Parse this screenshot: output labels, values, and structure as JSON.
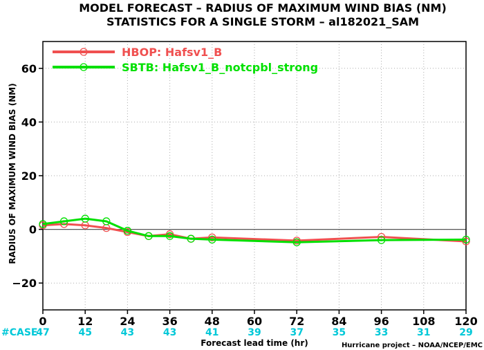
{
  "chart_data": {
    "type": "line",
    "title": "MODEL FORECAST – RADIUS OF MAXIMUM WIND BIAS (NM)",
    "subtitle": "STATISTICS FOR A SINGLE STORM – al182021_SAM",
    "xlabel": "Forecast lead time (hr)",
    "ylabel": "RADIUS OF MAXIMUM WIND BIAS (NM)",
    "xlim": [
      0,
      120
    ],
    "ylim": [
      -30,
      70
    ],
    "x_ticks": [
      0,
      12,
      24,
      36,
      48,
      60,
      72,
      84,
      96,
      108,
      120
    ],
    "y_ticks": [
      -20,
      0,
      20,
      40,
      60
    ],
    "grid": true,
    "legend_position": "top-left",
    "series": [
      {
        "name": "HBOP: Hafsv1_B",
        "color": "#f05050",
        "x": [
          0,
          6,
          12,
          18,
          24,
          30,
          36,
          42,
          48,
          72,
          96,
          120
        ],
        "y": [
          1.5,
          2.0,
          1.5,
          0.5,
          -1.0,
          -2.5,
          -1.8,
          -3.5,
          -3.0,
          -4.2,
          -2.8,
          -4.5
        ]
      },
      {
        "name": "SBTB: Hafsv1_B_notcpbl_strong",
        "color": "#00e000",
        "x": [
          0,
          6,
          12,
          18,
          24,
          30,
          36,
          42,
          48,
          72,
          96,
          120
        ],
        "y": [
          2.0,
          3.0,
          4.0,
          3.0,
          -0.5,
          -2.5,
          -2.5,
          -3.5,
          -3.8,
          -4.8,
          -4.0,
          -3.8
        ]
      }
    ],
    "case_label": "#CASE",
    "case_counts": [
      {
        "x": 0,
        "count": "47"
      },
      {
        "x": 12,
        "count": "45"
      },
      {
        "x": 24,
        "count": "43"
      },
      {
        "x": 36,
        "count": "43"
      },
      {
        "x": 48,
        "count": "41"
      },
      {
        "x": 60,
        "count": "39"
      },
      {
        "x": 72,
        "count": "37"
      },
      {
        "x": 84,
        "count": "35"
      },
      {
        "x": 96,
        "count": "33"
      },
      {
        "x": 108,
        "count": "31"
      },
      {
        "x": 120,
        "count": "29"
      }
    ],
    "credit": "Hurricane project – NOAA/NCEP/EMC"
  }
}
